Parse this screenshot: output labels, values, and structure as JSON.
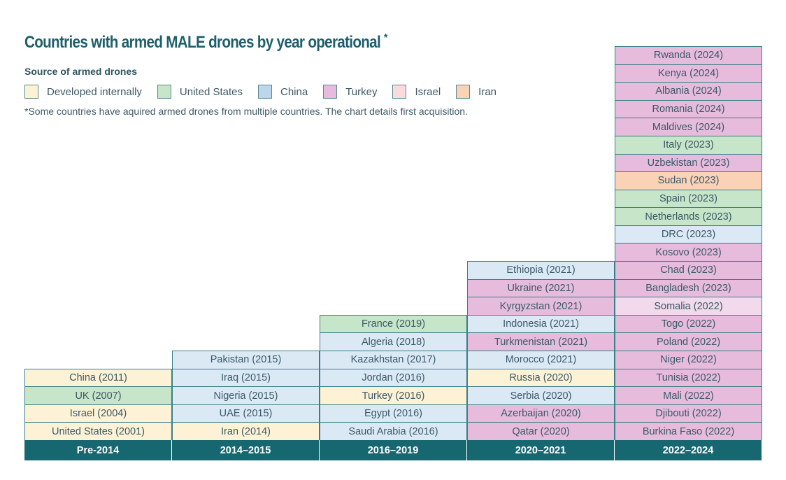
{
  "chart_data": {
    "type": "table",
    "title": "Countries with armed MALE drones by year operational",
    "title_mark": "*",
    "legend_title": "Source of armed drones",
    "legend": [
      {
        "key": "internal",
        "label": "Developed internally",
        "color": "#fdf2d5"
      },
      {
        "key": "us",
        "label": "United States",
        "color": "#c7e5c8"
      },
      {
        "key": "china",
        "label": "China",
        "color": "#bcd7eb"
      },
      {
        "key": "turkey",
        "label": "Turkey",
        "color": "#e6bbdc"
      },
      {
        "key": "israel",
        "label": "Israel",
        "color": "#fbd9dc"
      },
      {
        "key": "iran",
        "label": "Iran",
        "color": "#fbd2b6"
      }
    ],
    "cell_colors": {
      "internal": "#fdf2d5",
      "us": "#c7e5c8",
      "china": "#dbe9f5",
      "turkey": "#e6bbdc",
      "turkey_light": "#f2d9ec",
      "israel": "#fbd9dc",
      "iran": "#fbd2b6"
    },
    "note": "*Some countries have aquired armed drones from multiple countries. The chart details first acquisition.",
    "columns": [
      {
        "label": "Pre-2014",
        "items": [
          {
            "text": "United States (2001)",
            "source": "internal"
          },
          {
            "text": "Israel (2004)",
            "source": "internal"
          },
          {
            "text": "UK (2007)",
            "source": "us"
          },
          {
            "text": "China (2011)",
            "source": "internal"
          }
        ]
      },
      {
        "label": "2014–2015",
        "items": [
          {
            "text": "Iran (2014)",
            "source": "internal"
          },
          {
            "text": "UAE (2015)",
            "source": "china"
          },
          {
            "text": "Nigeria (2015)",
            "source": "china"
          },
          {
            "text": "Iraq (2015)",
            "source": "china"
          },
          {
            "text": "Pakistan (2015)",
            "source": "china"
          }
        ]
      },
      {
        "label": "2016–2019",
        "items": [
          {
            "text": "Saudi Arabia (2016)",
            "source": "china"
          },
          {
            "text": "Egypt (2016)",
            "source": "china"
          },
          {
            "text": "Turkey (2016)",
            "source": "internal"
          },
          {
            "text": "Jordan (2016)",
            "source": "china"
          },
          {
            "text": "Kazakhstan (2017)",
            "source": "china"
          },
          {
            "text": "Algeria (2018)",
            "source": "china"
          },
          {
            "text": "France (2019)",
            "source": "us"
          }
        ]
      },
      {
        "label": "2020–2021",
        "items": [
          {
            "text": "Qatar (2020)",
            "source": "turkey"
          },
          {
            "text": "Azerbaijan (2020)",
            "source": "turkey"
          },
          {
            "text": "Serbia (2020)",
            "source": "china"
          },
          {
            "text": "Russia (2020)",
            "source": "internal"
          },
          {
            "text": "Morocco (2021)",
            "source": "china"
          },
          {
            "text": "Turkmenistan (2021)",
            "source": "turkey"
          },
          {
            "text": "Indonesia (2021)",
            "source": "china"
          },
          {
            "text": "Kyrgyzstan (2021)",
            "source": "turkey"
          },
          {
            "text": "Ukraine (2021)",
            "source": "turkey"
          },
          {
            "text": "Ethiopia (2021)",
            "source": "china"
          }
        ]
      },
      {
        "label": "2022–2024",
        "items": [
          {
            "text": "Burkina Faso (2022)",
            "source": "turkey"
          },
          {
            "text": "Djibouti (2022)",
            "source": "turkey"
          },
          {
            "text": "Mali (2022)",
            "source": "turkey"
          },
          {
            "text": "Tunisia (2022)",
            "source": "turkey"
          },
          {
            "text": "Niger (2022)",
            "source": "turkey"
          },
          {
            "text": "Poland (2022)",
            "source": "turkey"
          },
          {
            "text": "Togo (2022)",
            "source": "turkey"
          },
          {
            "text": "Somalia (2022)",
            "source": "turkey_light"
          },
          {
            "text": "Bangladesh (2023)",
            "source": "turkey"
          },
          {
            "text": "Chad (2023)",
            "source": "turkey"
          },
          {
            "text": "Kosovo (2023)",
            "source": "turkey"
          },
          {
            "text": "DRC (2023)",
            "source": "china"
          },
          {
            "text": "Netherlands (2023)",
            "source": "us"
          },
          {
            "text": "Spain (2023)",
            "source": "us"
          },
          {
            "text": "Sudan (2023)",
            "source": "iran"
          },
          {
            "text": "Uzbekistan (2023)",
            "source": "turkey"
          },
          {
            "text": "Italy (2023)",
            "source": "us"
          },
          {
            "text": "Maldives (2024)",
            "source": "turkey"
          },
          {
            "text": "Romania (2024)",
            "source": "turkey"
          },
          {
            "text": "Albania (2024)",
            "source": "turkey"
          },
          {
            "text": "Kenya (2024)",
            "source": "turkey"
          },
          {
            "text": "Rwanda (2024)",
            "source": "turkey"
          }
        ]
      }
    ]
  }
}
